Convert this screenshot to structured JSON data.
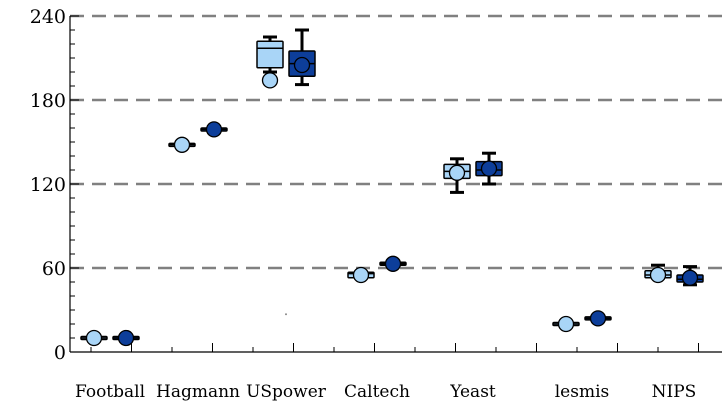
{
  "chart_data": {
    "type": "box",
    "title": "",
    "xlabel": "",
    "ylabel": "",
    "ylim": [
      0,
      240
    ],
    "yticks": [
      0,
      60,
      120,
      180,
      240
    ],
    "grid": "horizontal-dashed",
    "categories": [
      "Football",
      "Hagmann",
      "USpower",
      "Caltech",
      "Yeast",
      "lesmis",
      "NIPS"
    ],
    "colors": {
      "light": "#a9d5f7",
      "dark": "#0d3e9a",
      "grid": "#808080",
      "axis": "#000000"
    },
    "series": [
      {
        "color_key": "light",
        "boxes": [
          {
            "whisker_low": 10,
            "q1": 10,
            "median": 10,
            "q3": 10,
            "whisker_high": 10,
            "mean": 10
          },
          {
            "whisker_low": 147,
            "q1": 147,
            "median": 148,
            "q3": 149,
            "whisker_high": 149,
            "mean": 148
          },
          {
            "whisker_low": 200,
            "q1": 203,
            "median": 217,
            "q3": 222,
            "whisker_high": 225,
            "mean": 194
          },
          {
            "whisker_low": 53,
            "q1": 53,
            "median": 56,
            "q3": 57,
            "whisker_high": 57,
            "mean": 55
          },
          {
            "whisker_low": 114,
            "q1": 124,
            "median": 129,
            "q3": 134,
            "whisker_high": 138,
            "mean": 128
          },
          {
            "whisker_low": 20,
            "q1": 20,
            "median": 20,
            "q3": 20,
            "whisker_high": 20,
            "mean": 20
          },
          {
            "whisker_low": 53,
            "q1": 53,
            "median": 55,
            "q3": 58,
            "whisker_high": 62,
            "mean": 55
          }
        ]
      },
      {
        "color_key": "dark",
        "boxes": [
          {
            "whisker_low": 10,
            "q1": 10,
            "median": 10,
            "q3": 10,
            "whisker_high": 10,
            "mean": 10
          },
          {
            "whisker_low": 157,
            "q1": 158,
            "median": 159,
            "q3": 160,
            "whisker_high": 161,
            "mean": 159
          },
          {
            "whisker_low": 191,
            "q1": 197,
            "median": 206,
            "q3": 215,
            "whisker_high": 230,
            "mean": 205
          },
          {
            "whisker_low": 63,
            "q1": 63,
            "median": 63,
            "q3": 63,
            "whisker_high": 63,
            "mean": 63
          },
          {
            "whisker_low": 120,
            "q1": 126,
            "median": 130,
            "q3": 136,
            "whisker_high": 142,
            "mean": 131
          },
          {
            "whisker_low": 24,
            "q1": 24,
            "median": 24,
            "q3": 24,
            "whisker_high": 24,
            "mean": 24
          },
          {
            "whisker_low": 48,
            "q1": 50,
            "median": 52,
            "q3": 55,
            "whisker_high": 61,
            "mean": 53
          }
        ]
      }
    ],
    "outliers": [
      {
        "category": "USpower",
        "y": 27
      }
    ]
  }
}
